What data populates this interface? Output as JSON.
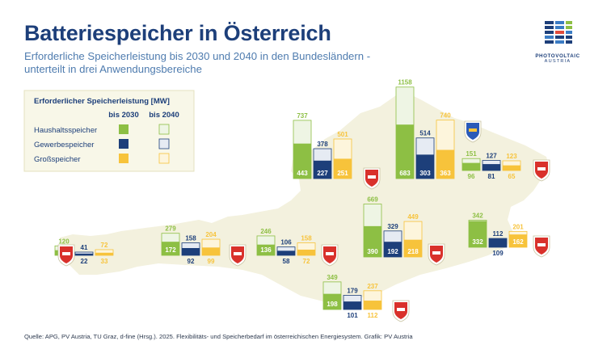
{
  "title": "Batteriespeicher in Österreich",
  "subtitle_line1": "Erforderliche Speicherleistung bis 2030 und 2040 in den Bundesländern -",
  "subtitle_line2": "unterteilt in drei Anwendungsbereiche",
  "logo": {
    "line1": "PHOTOVOLTAIC",
    "line2": "AUSTRIA"
  },
  "source_label": "Quelle:",
  "source_text": "APG, PV Austria, TU Graz, d-fine (Hrsg.). 2025. Flexibilitäts- und Speicherbedarf im österreichischen Energiesystem. Grafik: PV Austria",
  "colors": {
    "household": "#8dbf44",
    "commercial": "#1d3f7a",
    "grid": "#f7c33b",
    "household_2040": "#eef5e4",
    "commercial_2040": "#e6ebf3",
    "grid_2040": "#fdf5dc",
    "map": "#f3f1de",
    "title": "#1d3f7a"
  },
  "chart_data": {
    "type": "bar",
    "title": "Erforderlicher Speicherleistung [MW]",
    "unit": "MW",
    "legend": {
      "title": "Erforderlicher Speicherleistung [MW]",
      "col_2030": "bis 2030",
      "col_2040": "bis 2040",
      "rows": [
        "Haushaltsspeicher",
        "Gewerbespeicher",
        "Großspeicher"
      ]
    },
    "series_names": [
      "Haushaltsspeicher",
      "Gewerbespeicher",
      "Großspeicher"
    ],
    "regions": [
      {
        "name": "Vorarlberg",
        "icon": "vorarlberg-coat-of-arms-icon",
        "v2030": [
          65,
          22,
          33
        ],
        "v2040": [
          120,
          41,
          72
        ]
      },
      {
        "name": "Tirol",
        "icon": "tirol-coat-of-arms-icon",
        "v2030": [
          172,
          92,
          99
        ],
        "v2040": [
          279,
          158,
          204
        ]
      },
      {
        "name": "Salzburg",
        "icon": "salzburg-coat-of-arms-icon",
        "v2030": [
          136,
          58,
          72
        ],
        "v2040": [
          246,
          106,
          158
        ]
      },
      {
        "name": "Oberösterreich",
        "icon": "oberoesterreich-coat-of-arms-icon",
        "v2030": [
          443,
          227,
          251
        ],
        "v2040": [
          737,
          378,
          501
        ]
      },
      {
        "name": "Niederösterreich",
        "icon": "niederoesterreich-coat-of-arms-icon",
        "v2030": [
          683,
          303,
          363
        ],
        "v2040": [
          1158,
          514,
          740
        ]
      },
      {
        "name": "Wien",
        "icon": "wien-coat-of-arms-icon",
        "v2030": [
          96,
          81,
          65
        ],
        "v2040": [
          151,
          127,
          123
        ]
      },
      {
        "name": "Steiermark",
        "icon": "steiermark-coat-of-arms-icon",
        "v2030": [
          390,
          192,
          218
        ],
        "v2040": [
          669,
          329,
          449
        ]
      },
      {
        "name": "Burgenland",
        "icon": "burgenland-coat-of-arms-icon",
        "v2030": [
          332,
          109,
          162
        ],
        "v2040": [
          342,
          112,
          201
        ]
      },
      {
        "name": "Kärnten",
        "icon": "kaernten-coat-of-arms-icon",
        "v2030": [
          198,
          101,
          112
        ],
        "v2040": [
          349,
          179,
          237
        ]
      }
    ]
  }
}
